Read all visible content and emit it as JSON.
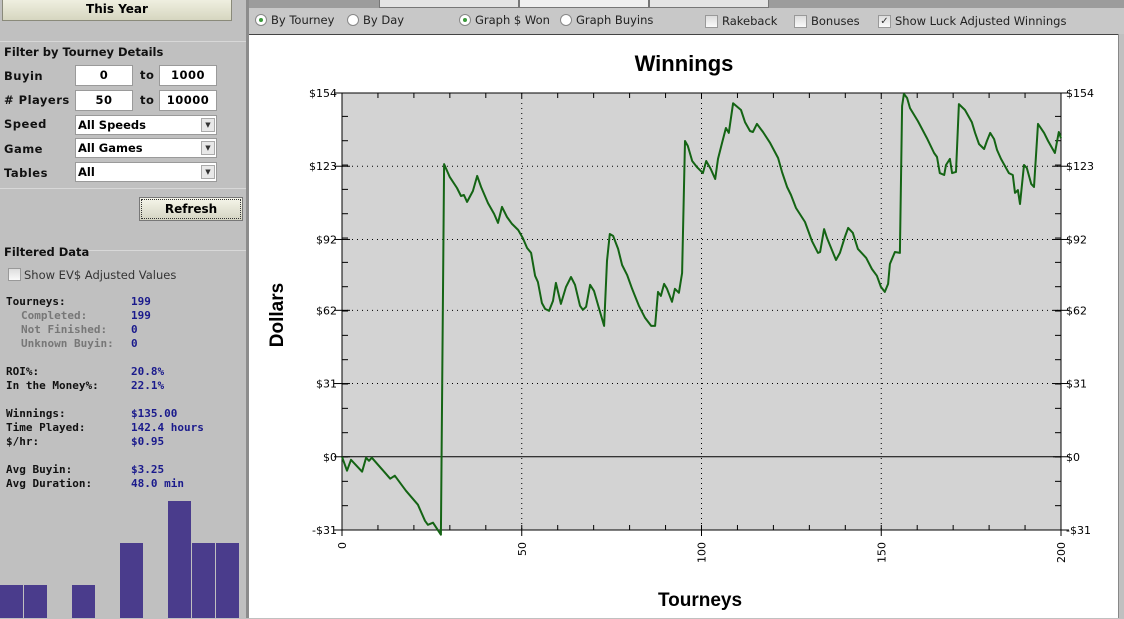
{
  "left": {
    "period_button": "This Year",
    "filter_title": "Filter by Tourney Details",
    "buyin": {
      "label": "Buyin",
      "min": "0",
      "to": "to",
      "max": "1000"
    },
    "players": {
      "label": "# Players",
      "min": "50",
      "to": "to",
      "max": "10000"
    },
    "speed": {
      "label": "Speed",
      "value": "All Speeds"
    },
    "game": {
      "label": "Game",
      "value": "All Games"
    },
    "tables": {
      "label": "Tables",
      "value": "All"
    },
    "refresh": "Refresh",
    "filtered_title": "Filtered Data",
    "ev_checkbox": {
      "label": "Show EV$ Adjusted Values",
      "checked": false
    },
    "stats": [
      {
        "label": "Tourneys:",
        "value": "199",
        "sub": false
      },
      {
        "label": "Completed:",
        "value": "199",
        "sub": true
      },
      {
        "label": "Not Finished:",
        "value": "0",
        "sub": true
      },
      {
        "label": "Unknown Buyin:",
        "value": "0",
        "sub": true
      },
      {
        "label": "ROI%:",
        "value": "20.8%",
        "sub": false
      },
      {
        "label": "In the Money%:",
        "value": "22.1%",
        "sub": false
      },
      {
        "label": "Winnings:",
        "value": "$135.00",
        "sub": false
      },
      {
        "label": "Time Played:",
        "value": "142.4 hours",
        "sub": false
      },
      {
        "label": "$/hr:",
        "value": "$0.95",
        "sub": false
      },
      {
        "label": "Avg Buyin:",
        "value": "$3.25",
        "sub": false
      },
      {
        "label": "Avg Duration:",
        "value": "48.0 min",
        "sub": false
      }
    ],
    "histogram": {
      "values": [
        1,
        1,
        0,
        1,
        0,
        2,
        0,
        3,
        2,
        2
      ],
      "color": "#4a3c8c"
    }
  },
  "toolbar": {
    "by_tourney": {
      "label": "By Tourney",
      "selected": true
    },
    "by_day": {
      "label": "By Day",
      "selected": false
    },
    "graph_won": {
      "label": "Graph $ Won",
      "selected": true
    },
    "graph_buyins": {
      "label": "Graph Buyins",
      "selected": false
    },
    "rakeback": {
      "label": "Rakeback",
      "checked": false
    },
    "bonuses": {
      "label": "Bonuses",
      "checked": false
    },
    "luck": {
      "label": "Show Luck Adjusted Winnings",
      "checked": true
    }
  },
  "chart_data": {
    "type": "line",
    "title": "Winnings",
    "xlabel": "Tourneys",
    "ylabel": "Dollars",
    "xlim": [
      0,
      200
    ],
    "ylim": [
      -31,
      154
    ],
    "xticks": [
      0,
      50,
      100,
      150,
      200
    ],
    "yticks": [
      154,
      123,
      92,
      62,
      31,
      0,
      -31
    ],
    "ytick_labels": [
      "$154",
      "$123",
      "$92",
      "$62",
      "$31",
      "$0",
      "-$31"
    ],
    "grid": true,
    "line_color": "#146414",
    "background": "#d3d3d3",
    "points": [
      [
        0,
        0
      ],
      [
        1.4,
        -5.9
      ],
      [
        2.5,
        -1.3
      ],
      [
        5.6,
        -6.3
      ],
      [
        6.7,
        -0.4
      ],
      [
        7.5,
        -1.7
      ],
      [
        8.3,
        -0.4
      ],
      [
        11.7,
        -6.3
      ],
      [
        13.4,
        -9.3
      ],
      [
        14.7,
        -8
      ],
      [
        17.8,
        -14.4
      ],
      [
        21.1,
        -20.3
      ],
      [
        23.1,
        -27.1
      ],
      [
        23.9,
        -28.8
      ],
      [
        25.3,
        -27.9
      ],
      [
        27.5,
        -33
      ],
      [
        28.4,
        123.9
      ],
      [
        30,
        118.4
      ],
      [
        32,
        113.8
      ],
      [
        33.1,
        110.4
      ],
      [
        33.9,
        110.8
      ],
      [
        34.8,
        107.9
      ],
      [
        36.4,
        112.5
      ],
      [
        37.6,
        118.9
      ],
      [
        38.7,
        114.2
      ],
      [
        40.6,
        107.4
      ],
      [
        42.3,
        102.8
      ],
      [
        43.4,
        99
      ],
      [
        44.5,
        105.8
      ],
      [
        45.9,
        101.5
      ],
      [
        47.3,
        98.6
      ],
      [
        49,
        96
      ],
      [
        50.3,
        92.6
      ],
      [
        51.5,
        88.4
      ],
      [
        52.6,
        86.3
      ],
      [
        53.7,
        76.6
      ],
      [
        54.5,
        74
      ],
      [
        55.6,
        65.1
      ],
      [
        56.5,
        62.6
      ],
      [
        57.6,
        61.8
      ],
      [
        58.7,
        66
      ],
      [
        59.5,
        73.6
      ],
      [
        60.9,
        64.7
      ],
      [
        62.3,
        71.9
      ],
      [
        63.7,
        76.1
      ],
      [
        64.8,
        72.8
      ],
      [
        66.2,
        63.9
      ],
      [
        67,
        62.2
      ],
      [
        67.9,
        63.5
      ],
      [
        69,
        72.8
      ],
      [
        70.1,
        70.2
      ],
      [
        71.2,
        64.3
      ],
      [
        72.9,
        55.4
      ],
      [
        73.7,
        82.9
      ],
      [
        74.5,
        94.3
      ],
      [
        75.4,
        93.5
      ],
      [
        76.8,
        88
      ],
      [
        77.9,
        81.2
      ],
      [
        79.3,
        77
      ],
      [
        80.7,
        71.1
      ],
      [
        82.6,
        63.9
      ],
      [
        84.3,
        58.8
      ],
      [
        86,
        55.4
      ],
      [
        87.1,
        55.4
      ],
      [
        87.9,
        69.8
      ],
      [
        88.7,
        68.1
      ],
      [
        89.6,
        73.2
      ],
      [
        90.4,
        71.1
      ],
      [
        91.8,
        65.6
      ],
      [
        92.6,
        71.1
      ],
      [
        93.7,
        69.4
      ],
      [
        94.6,
        77.8
      ],
      [
        95.4,
        133.7
      ],
      [
        96.2,
        131.6
      ],
      [
        97.4,
        125.2
      ],
      [
        98.7,
        122.7
      ],
      [
        100.4,
        120.1
      ],
      [
        101.3,
        125.2
      ],
      [
        102.6,
        121.8
      ],
      [
        103.8,
        117.6
      ],
      [
        104.6,
        126.1
      ],
      [
        105.7,
        132.8
      ],
      [
        106.8,
        139.2
      ],
      [
        107.6,
        137.1
      ],
      [
        108.8,
        149.7
      ],
      [
        111,
        146.8
      ],
      [
        112.1,
        141.7
      ],
      [
        113.5,
        137.9
      ],
      [
        114.3,
        137.5
      ],
      [
        115.4,
        140.9
      ],
      [
        117.1,
        137.5
      ],
      [
        119.1,
        132.8
      ],
      [
        121.3,
        126.5
      ],
      [
        122.4,
        120.6
      ],
      [
        123.8,
        114.2
      ],
      [
        124.9,
        110.8
      ],
      [
        126.3,
        105.3
      ],
      [
        128.8,
        99.4
      ],
      [
        130.7,
        91.4
      ],
      [
        132.4,
        86.3
      ],
      [
        133,
        86.7
      ],
      [
        134.1,
        96.4
      ],
      [
        134.9,
        92.6
      ],
      [
        137.4,
        83.3
      ],
      [
        138.5,
        86.3
      ],
      [
        139.9,
        93.1
      ],
      [
        140.8,
        96.9
      ],
      [
        142.1,
        94.8
      ],
      [
        143.5,
        88
      ],
      [
        145.8,
        84.2
      ],
      [
        147.4,
        79.5
      ],
      [
        148.8,
        76.6
      ],
      [
        149.9,
        71.9
      ],
      [
        151,
        69.8
      ],
      [
        151.9,
        73.2
      ],
      [
        152.4,
        81.6
      ],
      [
        153.8,
        86.7
      ],
      [
        155.2,
        86.3
      ],
      [
        155.8,
        148.5
      ],
      [
        156.3,
        153.6
      ],
      [
        157.2,
        151.9
      ],
      [
        158,
        147.6
      ],
      [
        160.2,
        142.1
      ],
      [
        162.7,
        134.9
      ],
      [
        164.7,
        128.6
      ],
      [
        165.5,
        126.9
      ],
      [
        166.3,
        120.1
      ],
      [
        167.5,
        119.3
      ],
      [
        168,
        123.5
      ],
      [
        169.1,
        126.1
      ],
      [
        169.7,
        120.1
      ],
      [
        170.8,
        120.6
      ],
      [
        171.6,
        149.3
      ],
      [
        173.3,
        146.8
      ],
      [
        175.2,
        141.7
      ],
      [
        176.1,
        137.1
      ],
      [
        177.2,
        132.4
      ],
      [
        178.6,
        130.3
      ],
      [
        179.4,
        133.7
      ],
      [
        180.3,
        137.1
      ],
      [
        181.4,
        134.5
      ],
      [
        182.2,
        129.9
      ],
      [
        183.3,
        126.1
      ],
      [
        185.5,
        120.1
      ],
      [
        186.6,
        119.3
      ],
      [
        187.2,
        111.7
      ],
      [
        188,
        112.9
      ],
      [
        188.6,
        107
      ],
      [
        189.7,
        123.5
      ],
      [
        190.5,
        122.3
      ],
      [
        191.7,
        115.5
      ],
      [
        192.5,
        114.2
      ],
      [
        193.6,
        140.9
      ],
      [
        195.3,
        137.1
      ],
      [
        196.4,
        133.7
      ],
      [
        198.3,
        128.6
      ],
      [
        199.4,
        137.5
      ],
      [
        200,
        134.9
      ]
    ]
  }
}
